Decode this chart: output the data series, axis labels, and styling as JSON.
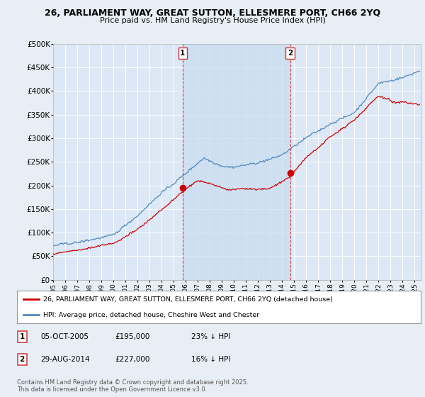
{
  "title_line1": "26, PARLIAMENT WAY, GREAT SUTTON, ELLESMERE PORT, CH66 2YQ",
  "title_line2": "Price paid vs. HM Land Registry's House Price Index (HPI)",
  "bg_color": "#e8eef5",
  "plot_bg_color": "#dce8f5",
  "shade_color": "#c8dcf0",
  "grid_color": "#ffffff",
  "red_line_color": "#cc0000",
  "blue_line_color": "#5588bb",
  "vline_color": "#cc3333",
  "marker1_year": 2005.75,
  "marker2_year": 2014.66,
  "sale1_date": "05-OCT-2005",
  "sale1_price": "£195,000",
  "sale1_note": "23% ↓ HPI",
  "sale2_date": "29-AUG-2014",
  "sale2_price": "£227,000",
  "sale2_note": "16% ↓ HPI",
  "legend_red": "26, PARLIAMENT WAY, GREAT SUTTON, ELLESMERE PORT, CH66 2YQ (detached house)",
  "legend_blue": "HPI: Average price, detached house, Cheshire West and Chester",
  "copyright": "Contains HM Land Registry data © Crown copyright and database right 2025.\nThis data is licensed under the Open Government Licence v3.0.",
  "ylim": [
    0,
    500000
  ],
  "yticks": [
    0,
    50000,
    100000,
    150000,
    200000,
    250000,
    300000,
    350000,
    400000,
    450000,
    500000
  ],
  "xmin": 1995.0,
  "xmax": 2025.5,
  "sale1_price_val": 195000,
  "sale2_price_val": 227000
}
